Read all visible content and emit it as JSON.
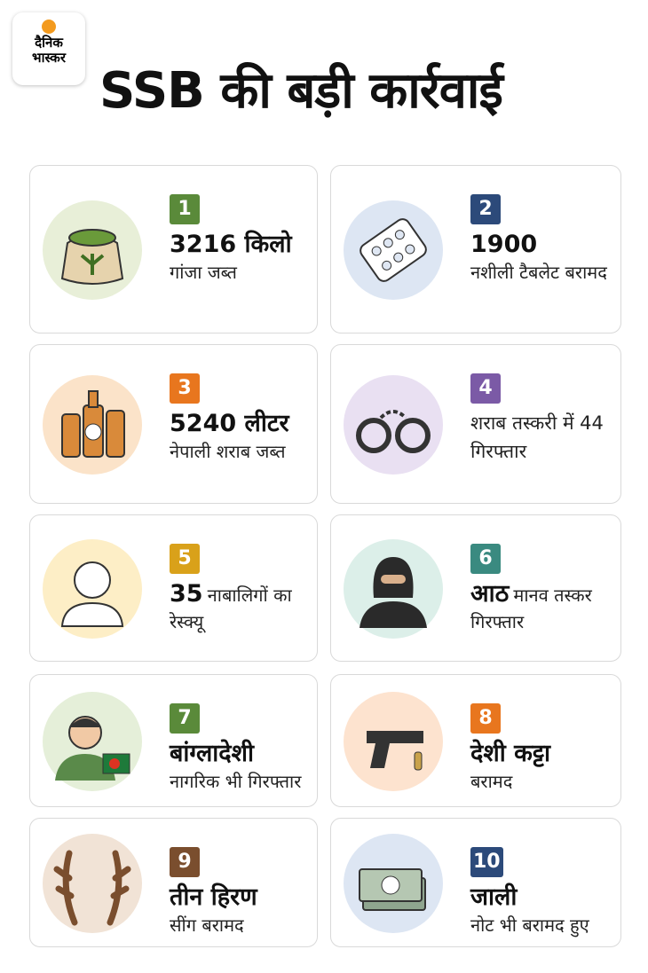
{
  "header": {
    "logo": [
      "दैनिक",
      "भास्कर"
    ],
    "title": "SSB की बड़ी कार्रवाई"
  },
  "items": [
    {
      "number": "1",
      "bold": "3216 किलो",
      "text": "गांजा जब्त"
    },
    {
      "number": "2",
      "bold": "1900",
      "text": "नशीली टैबलेट बरामद"
    },
    {
      "number": "3",
      "bold": "5240 लीटर",
      "text": "नेपाली शराब जब्त"
    },
    {
      "number": "4",
      "text": "शराब तस्करी में 44 गिरफ्तार"
    },
    {
      "number": "5",
      "bold": "35",
      "text": "नाबालिगों का रेस्क्यू"
    },
    {
      "number": "6",
      "bold": "आठ",
      "text": "मानव तस्कर गिरफ्तार"
    },
    {
      "number": "7",
      "bold": "बांग्लादेशी",
      "text": "नागरिक भी गिरफ्तार"
    },
    {
      "number": "8",
      "bold": "देशी कट्टा",
      "text": "बरामद"
    },
    {
      "number": "9",
      "bold": "तीन हिरण",
      "text": "सींग बरामद"
    },
    {
      "number": "10",
      "bold": "जाली",
      "text": "नोट भी बरामद हुए"
    }
  ]
}
